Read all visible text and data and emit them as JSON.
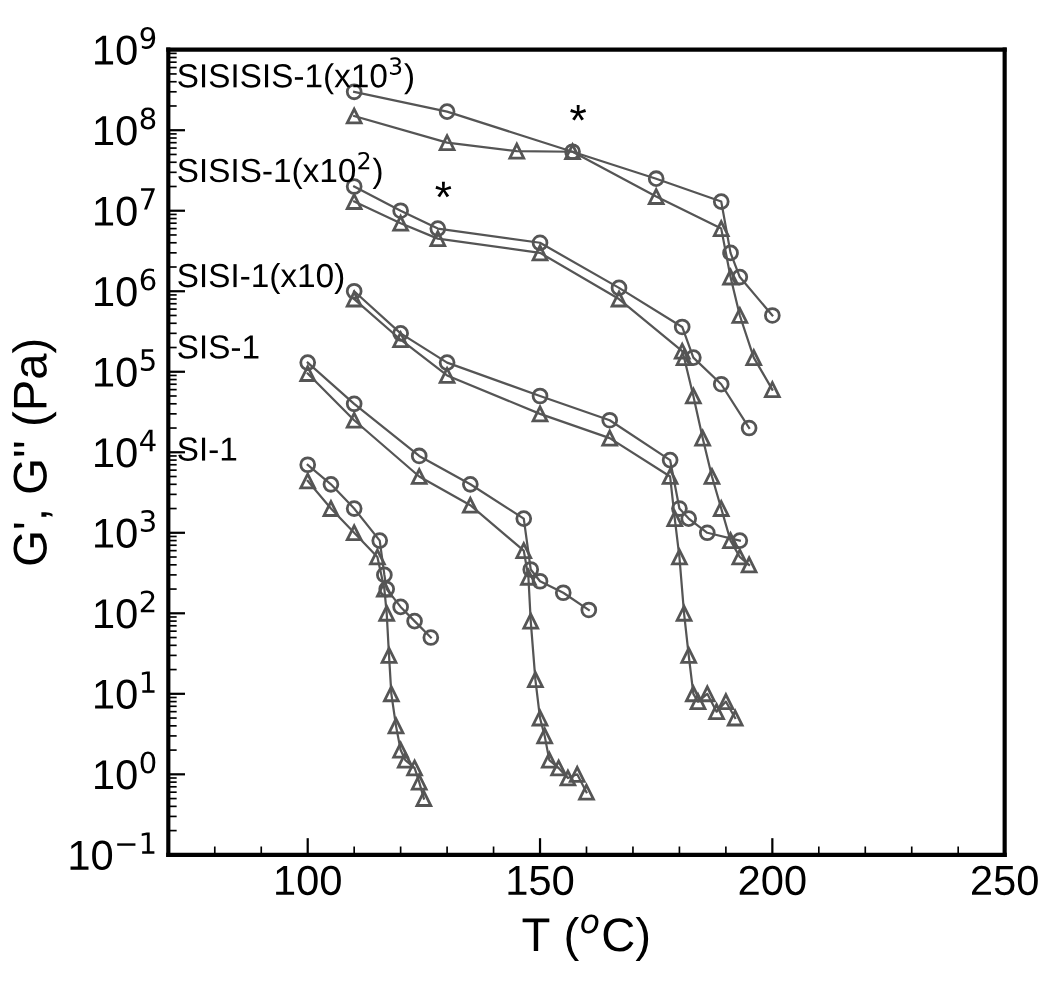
{
  "chart_data": {
    "type": "line",
    "xlabel": "T ($^{o}$C)",
    "ylabel": "G', G'' (Pa)",
    "log": "y",
    "grid": false,
    "legend": false,
    "xlim": [
      70,
      250
    ],
    "xticks": [
      100,
      150,
      200,
      250
    ],
    "ylim": [
      0.1,
      1000000000
    ],
    "yticks": [
      {
        "value": 0.1,
        "label": "10$^{−1}$"
      },
      {
        "value": 1,
        "label": "10$^{0}$"
      },
      {
        "value": 10,
        "label": "10$^{1}$"
      },
      {
        "value": 100,
        "label": "10$^{2}$"
      },
      {
        "value": 1000,
        "label": "10$^{3}$"
      },
      {
        "value": 10000,
        "label": "10$^{4}$"
      },
      {
        "value": 100000,
        "label": "10$^{5}$"
      },
      {
        "value": 1000000,
        "label": "10$^{6}$"
      },
      {
        "value": 10000000,
        "label": "10$^{7}$"
      },
      {
        "value": 100000000,
        "label": "10$^{8}$"
      },
      {
        "value": 1000000000,
        "label": "10$^{9}$"
      }
    ],
    "series": [
      {
        "name": "SI-1",
        "marker": "circle",
        "color": "#555555",
        "x": [
          100,
          105,
          110,
          115.5,
          116.5,
          117,
          120,
          123,
          126.5
        ],
        "values": [
          7000,
          4000,
          2000,
          800,
          300,
          200,
          120,
          80,
          50
        ]
      },
      {
        "marker": "triangle",
        "color": "#555555",
        "x": [
          100,
          105,
          110,
          115,
          116.5,
          117,
          117.5,
          118,
          119,
          120,
          121,
          123,
          124,
          125
        ],
        "values": [
          4400,
          2000,
          1000,
          500,
          200,
          100,
          30,
          10,
          4,
          2,
          1.5,
          1.2,
          0.8,
          0.5
        ]
      },
      {
        "name": "SIS-1",
        "marker": "circle",
        "color": "#555555",
        "x": [
          100,
          110,
          124,
          135,
          146.5,
          148,
          150,
          155,
          160.5
        ],
        "values": [
          130000,
          40000,
          9000,
          4000,
          1500,
          350,
          250,
          180,
          110
        ]
      },
      {
        "marker": "triangle",
        "color": "#555555",
        "x": [
          100,
          110,
          124,
          135,
          146.5,
          147.5,
          148,
          149,
          150,
          151,
          152,
          154,
          156,
          158,
          160
        ],
        "values": [
          95000,
          25000,
          5000,
          2200,
          600,
          280,
          80,
          15,
          5,
          3,
          1.5,
          1.2,
          0.9,
          1,
          0.6
        ]
      },
      {
        "name": "SISI-1(x10)",
        "marker": "circle",
        "color": "#555555",
        "x": [
          110,
          120,
          130,
          150,
          165,
          178,
          180,
          182,
          186,
          193
        ],
        "values": [
          1000000,
          300000,
          130000,
          50000,
          25000,
          8000,
          2000,
          1500,
          1000,
          800
        ]
      },
      {
        "marker": "triangle",
        "color": "#555555",
        "x": [
          110,
          120,
          130,
          150,
          165,
          178,
          179,
          180,
          181,
          182,
          183,
          184,
          186,
          188,
          190,
          192
        ],
        "values": [
          800000,
          250000,
          90000,
          30000,
          15000,
          5000,
          1500,
          500,
          100,
          30,
          10,
          8,
          10,
          6,
          8,
          5
        ]
      },
      {
        "name": "SISIS-1(x10$^{2}$)",
        "marker": "circle",
        "color": "#555555",
        "x": [
          110,
          120,
          128,
          150,
          167,
          180.6,
          183,
          189,
          195
        ],
        "values": [
          20000000,
          10000000,
          6000000,
          4000000,
          1100000,
          360000,
          150000,
          70000,
          20000
        ]
      },
      {
        "marker": "triangle",
        "color": "#555555",
        "x": [
          110,
          120,
          128,
          150,
          167,
          180.6,
          181,
          183,
          185,
          187,
          189,
          191,
          193,
          195
        ],
        "values": [
          13000000,
          7000000,
          4500000,
          3000000,
          800000,
          180000,
          150000,
          50000,
          15000,
          5000,
          2000,
          800,
          500,
          400
        ]
      },
      {
        "name": "SISISIS-1(x10$^{3}$)",
        "marker": "circle",
        "color": "#555555",
        "x": [
          110,
          130,
          157,
          175,
          189,
          191,
          193,
          200
        ],
        "values": [
          300000000,
          170000000,
          54000000,
          25000000,
          13000000,
          3000000,
          1500000,
          500000
        ]
      },
      {
        "marker": "triangle",
        "color": "#555555",
        "x": [
          110,
          130,
          145,
          157,
          175,
          189,
          191,
          193,
          196,
          200
        ],
        "values": [
          150000000,
          70000000,
          55000000,
          54000000,
          15000000,
          6000000,
          1500000,
          500000,
          150000,
          60000
        ]
      }
    ],
    "annotations": [
      {
        "text": "*",
        "x": 157,
        "y": 54000000
      },
      {
        "text": "*",
        "x": 128,
        "y": 6000000
      }
    ]
  }
}
